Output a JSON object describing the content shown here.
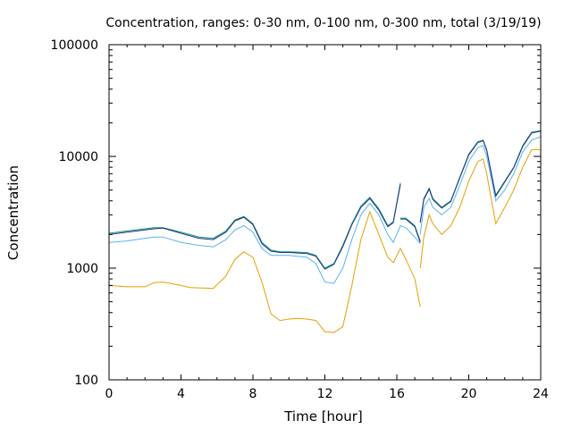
{
  "chart_data": {
    "type": "line",
    "title": "Concentration, ranges: 0-30 nm, 0-100 nm, 0-300 nm, total (3/19/19)",
    "xlabel": "Time [hour]",
    "ylabel": "Concentration",
    "xlim": [
      0,
      24
    ],
    "ylim": [
      100,
      100000
    ],
    "yscale": "log",
    "xticks": [
      0,
      4,
      8,
      12,
      16,
      20,
      24
    ],
    "xtick_labels": [
      "0",
      "4",
      "8",
      "12",
      "16",
      "20",
      "24"
    ],
    "yticks": [
      100,
      1000,
      10000,
      100000
    ],
    "ytick_labels": [
      "100",
      "1000",
      "10000",
      "100000"
    ],
    "grid": false,
    "legend": "none",
    "series": [
      {
        "color": "#e69f00",
        "x": [
          0,
          1,
          2,
          2.5,
          3,
          4,
          4.5,
          5,
          5.8,
          6.5,
          7,
          7.5,
          8,
          8.5,
          9,
          9.5,
          10,
          10.5,
          11,
          11.5,
          12,
          12.5,
          13,
          13.5,
          14,
          14.5,
          15,
          15.5,
          15.8,
          16.2,
          16.5,
          17,
          17.3
        ],
        "y": [
          700,
          680,
          680,
          740,
          750,
          700,
          670,
          665,
          660,
          850,
          1200,
          1400,
          1250,
          750,
          390,
          340,
          350,
          355,
          350,
          340,
          270,
          265,
          300,
          700,
          1800,
          3200,
          2000,
          1250,
          1120,
          1500,
          1200,
          800,
          450
        ]
      },
      {
        "color": "#e69f00",
        "x": [
          17.3,
          17.5,
          17.8,
          18,
          18.5,
          19,
          19.5,
          20,
          20.5,
          20.8,
          21,
          21.5,
          22,
          22.5,
          23,
          23.5,
          24
        ],
        "y": [
          1000,
          1900,
          3000,
          2500,
          2000,
          2400,
          3500,
          6000,
          9000,
          9500,
          7000,
          2500,
          3500,
          5000,
          8000,
          11500,
          11500
        ]
      },
      {
        "color": "#56b4e9",
        "x": [
          0,
          1,
          2,
          2.5,
          3,
          4,
          5,
          5.8,
          6.5,
          7,
          7.5,
          8,
          8.5,
          9,
          9.5,
          10,
          11,
          11.5,
          12,
          12.5,
          13,
          13.5,
          14,
          14.5,
          15,
          15.5,
          15.8,
          16.2,
          16.5,
          17,
          17.3
        ],
        "y": [
          1700,
          1750,
          1850,
          1900,
          1900,
          1700,
          1600,
          1550,
          1800,
          2200,
          2400,
          2100,
          1500,
          1300,
          1300,
          1300,
          1250,
          1100,
          750,
          730,
          1000,
          1800,
          3000,
          3800,
          3000,
          2000,
          1700,
          2400,
          2300,
          1900,
          1650
        ]
      },
      {
        "color": "#56b4e9",
        "x": [
          17.3,
          17.5,
          17.8,
          18,
          18.5,
          19,
          19.5,
          20,
          20.5,
          20.8,
          21,
          21.5,
          22,
          22.5,
          23,
          23.5,
          24
        ],
        "y": [
          2000,
          3500,
          4200,
          3500,
          3000,
          3500,
          5500,
          9000,
          12000,
          12500,
          10000,
          4000,
          5000,
          7000,
          11000,
          14000,
          15000
        ]
      },
      {
        "color": "#009e73",
        "x": [
          0,
          1,
          2,
          2.5,
          3,
          4,
          5,
          5.8,
          6.5,
          7,
          7.5,
          8,
          8.5,
          9,
          9.5,
          10,
          11,
          11.5,
          12,
          12.5,
          13,
          13.5,
          14,
          14.5,
          15,
          15.5,
          15.8,
          16.2
        ],
        "y": [
          2050,
          2150,
          2250,
          2300,
          2300,
          2100,
          1900,
          1850,
          2150,
          2700,
          2900,
          2500,
          1700,
          1450,
          1400,
          1400,
          1380,
          1300,
          1000,
          1100,
          1600,
          2500,
          3600,
          4300,
          3400,
          2400,
          2600,
          5800
        ]
      },
      {
        "color": "#009e73",
        "x": [
          16.2,
          16.5,
          17,
          17.3
        ],
        "y": [
          2800,
          2800,
          2400,
          1750
        ]
      },
      {
        "color": "#009e73",
        "x": [
          17.3,
          17.5,
          17.8,
          18,
          18.5,
          19,
          19.5,
          20,
          20.5,
          20.8,
          21,
          21.5,
          22,
          22.5,
          23,
          23.5,
          24
        ],
        "y": [
          2600,
          4200,
          5200,
          4200,
          3500,
          4000,
          6500,
          10500,
          13500,
          14000,
          11500,
          4500,
          6000,
          8000,
          12500,
          16500,
          17000
        ]
      },
      {
        "color": "#2b2b8c",
        "x": [
          0,
          1,
          2,
          2.5,
          3,
          4,
          5,
          5.8,
          6.5,
          7,
          7.5,
          8,
          8.5,
          9,
          9.5,
          10,
          11,
          11.5,
          12,
          12.5,
          13,
          13.5,
          14,
          14.5,
          15,
          15.5,
          15.8,
          16.2
        ],
        "y": [
          2000,
          2100,
          2200,
          2250,
          2280,
          2050,
          1850,
          1800,
          2100,
          2650,
          2850,
          2450,
          1650,
          1420,
          1380,
          1380,
          1350,
          1280,
          980,
          1080,
          1560,
          2450,
          3500,
          4200,
          3300,
          2350,
          2550,
          5600
        ]
      },
      {
        "color": "#2b2b8c",
        "x": [
          16.2,
          16.5,
          17,
          17.3
        ],
        "y": [
          2750,
          2750,
          2350,
          1700
        ]
      },
      {
        "color": "#2b2b8c",
        "x": [
          17.3,
          17.5,
          17.8,
          18,
          18.5,
          19,
          19.5,
          20,
          20.5,
          20.8,
          21,
          21.5,
          22,
          22.5,
          23,
          23.5,
          24
        ],
        "y": [
          2550,
          4100,
          5100,
          4100,
          3450,
          3950,
          6400,
          10300,
          13300,
          13800,
          11300,
          4400,
          5900,
          7900,
          12300,
          16200,
          16800
        ]
      }
    ]
  }
}
